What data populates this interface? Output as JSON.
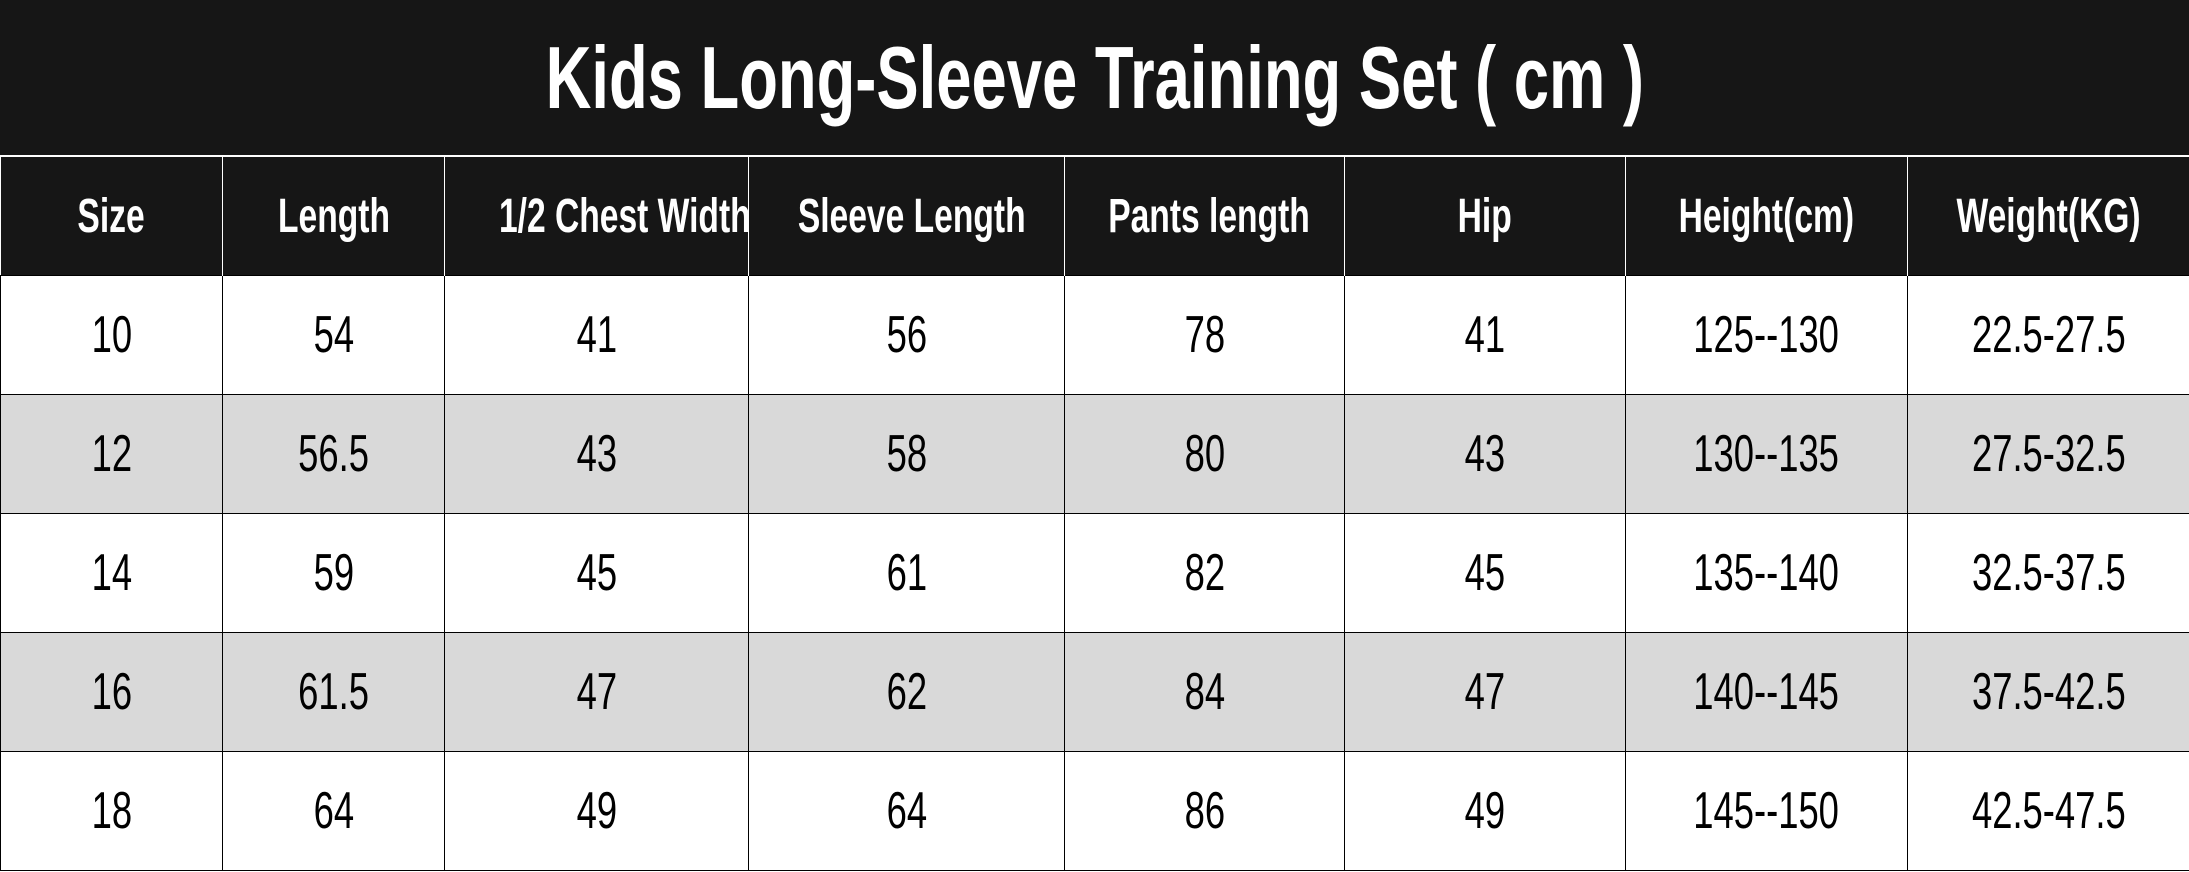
{
  "title": "Kids Long-Sleeve Training Set ( cm )",
  "columns": [
    "Size",
    "Length",
    "1/2 Chest Width",
    "Sleeve Length",
    "Pants length",
    "Hip",
    "Height(cm)",
    "Weight(KG)"
  ],
  "rows": [
    [
      "10",
      "54",
      "41",
      "56",
      "78",
      "41",
      "125--130",
      "22.5-27.5"
    ],
    [
      "12",
      "56.5",
      "43",
      "58",
      "80",
      "43",
      "130--135",
      "27.5-32.5"
    ],
    [
      "14",
      "59",
      "45",
      "61",
      "82",
      "45",
      "135--140",
      "32.5-37.5"
    ],
    [
      "16",
      "61.5",
      "47",
      "62",
      "84",
      "47",
      "140--145",
      "37.5-42.5"
    ],
    [
      "18",
      "64",
      "49",
      "64",
      "86",
      "49",
      "145--150",
      "42.5-47.5"
    ]
  ],
  "colors": {
    "header_bg": "#161616",
    "alt_row_bg": "#d9d9d9"
  }
}
